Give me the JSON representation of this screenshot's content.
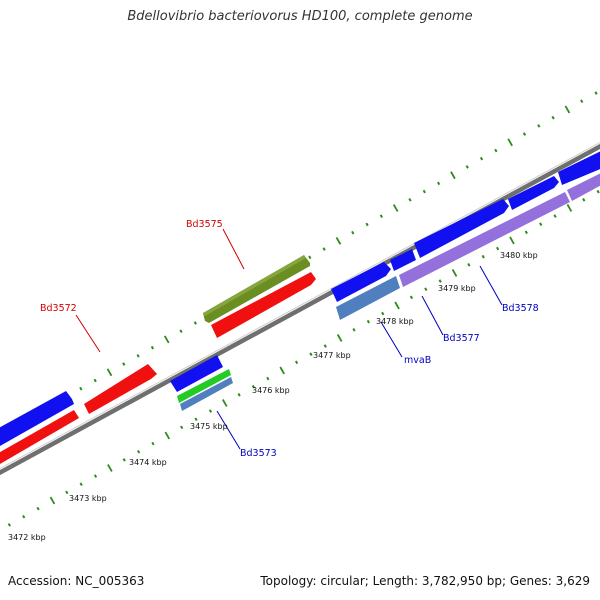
{
  "title": "Bdellovibrio bacteriovorus HD100, complete genome",
  "footer": {
    "accession": "Accession: NC_005363",
    "summary": "Topology: circular; Length: 3,782,950 bp; Genes: 3,629"
  },
  "colors": {
    "backbone": "#7d7d7d",
    "ticks": "#2e8b1e",
    "forward_cds": "#1010f0",
    "reverse_cds": "#f01010",
    "labeled_reverse": "#6b8e23",
    "pale_blue": "#4f7fbf",
    "violet": "#9370db",
    "green": "#22cc22",
    "label_red": "#d00000",
    "label_blue": "#0000c0"
  },
  "kbp_labels": [
    {
      "text": "3472 kbp"
    },
    {
      "text": "3473 kbp"
    },
    {
      "text": "3474 kbp"
    },
    {
      "text": "3475 kbp"
    },
    {
      "text": "3476 kbp"
    },
    {
      "text": "3477 kbp"
    },
    {
      "text": "3478 kbp"
    },
    {
      "text": "3479 kbp"
    },
    {
      "text": "3480 kbp"
    }
  ],
  "gene_labels": [
    {
      "text": "Bd3575",
      "color": "label_red"
    },
    {
      "text": "Bd3572",
      "color": "label_red"
    },
    {
      "text": "Bd3573",
      "color": "label_blue"
    },
    {
      "text": "mvaB",
      "color": "label_blue"
    },
    {
      "text": "Bd3577",
      "color": "label_blue"
    },
    {
      "text": "Bd3578",
      "color": "label_blue"
    }
  ]
}
